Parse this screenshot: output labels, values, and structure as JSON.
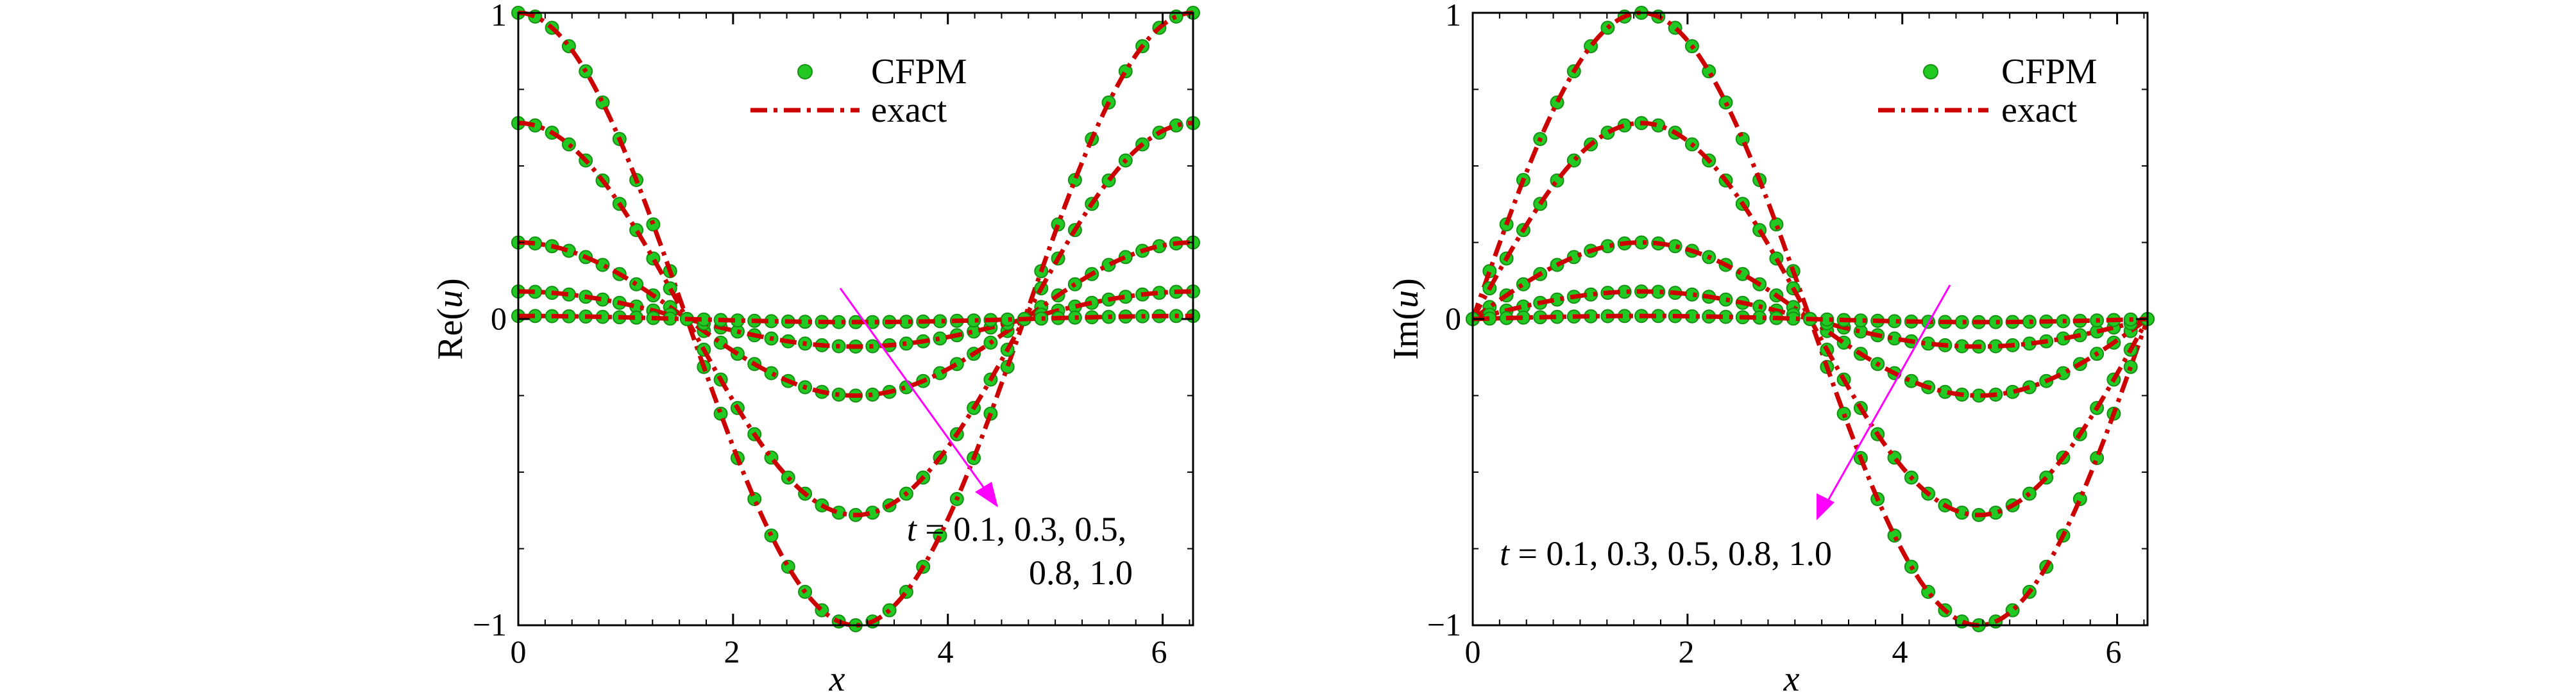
{
  "colors": {
    "cfpm_marker": "#22c922",
    "exact_line": "#cc0000",
    "arrow": "#ff00ff",
    "axis": "#000000"
  },
  "chart_data": [
    {
      "type": "line",
      "ylabel": "Re(u)",
      "ylabel_pre": "Re(",
      "ylabel_var": "u",
      "ylabel_post": ")",
      "xlabel": "x",
      "xlim": [
        0,
        6.2832
      ],
      "ylim": [
        -1,
        1
      ],
      "x_ticks": [
        0,
        2,
        4,
        6
      ],
      "y_ticks": [
        -1,
        0,
        1
      ],
      "x_tick_labels": [
        "0",
        "2",
        "4",
        "6"
      ],
      "y_tick_labels": [
        "−1",
        "0",
        "1"
      ],
      "function": "cos",
      "legend": {
        "position": "top-center",
        "entries": [
          "CFPM",
          "exact"
        ]
      },
      "series": [
        {
          "amplitude": 1.0
        },
        {
          "amplitude": 0.64
        },
        {
          "amplitude": 0.25
        },
        {
          "amplitude": 0.09
        },
        {
          "amplitude": 0.01
        }
      ],
      "annotation": {
        "lines": [
          "t = 0.1, 0.3, 0.5,",
          "0.8, 1.0"
        ],
        "line1_var": "t",
        "line1_rest": " = 0.1, 0.3, 0.5,",
        "line2": "0.8, 1.0",
        "arrow_direction": "down-right"
      }
    },
    {
      "type": "line",
      "ylabel": "Im(u)",
      "ylabel_pre": "Im(",
      "ylabel_var": "u",
      "ylabel_post": ")",
      "xlabel": "x",
      "xlim": [
        0,
        6.2832
      ],
      "ylim": [
        -1,
        1
      ],
      "x_ticks": [
        0,
        2,
        4,
        6
      ],
      "y_ticks": [
        -1,
        0,
        1
      ],
      "x_tick_labels": [
        "0",
        "2",
        "4",
        "6"
      ],
      "y_tick_labels": [
        "−1",
        "0",
        "1"
      ],
      "function": "sin",
      "legend": {
        "position": "top-right",
        "entries": [
          "CFPM",
          "exact"
        ]
      },
      "series": [
        {
          "amplitude": 1.0
        },
        {
          "amplitude": 0.64
        },
        {
          "amplitude": 0.25
        },
        {
          "amplitude": 0.09
        },
        {
          "amplitude": 0.01
        }
      ],
      "annotation": {
        "lines": [
          "t = 0.1, 0.3, 0.5, 0.8, 1.0"
        ],
        "line1_var": "t",
        "line1_rest": " = 0.1, 0.3, 0.5, 0.8, 1.0",
        "arrow_direction": "down-left"
      }
    }
  ]
}
